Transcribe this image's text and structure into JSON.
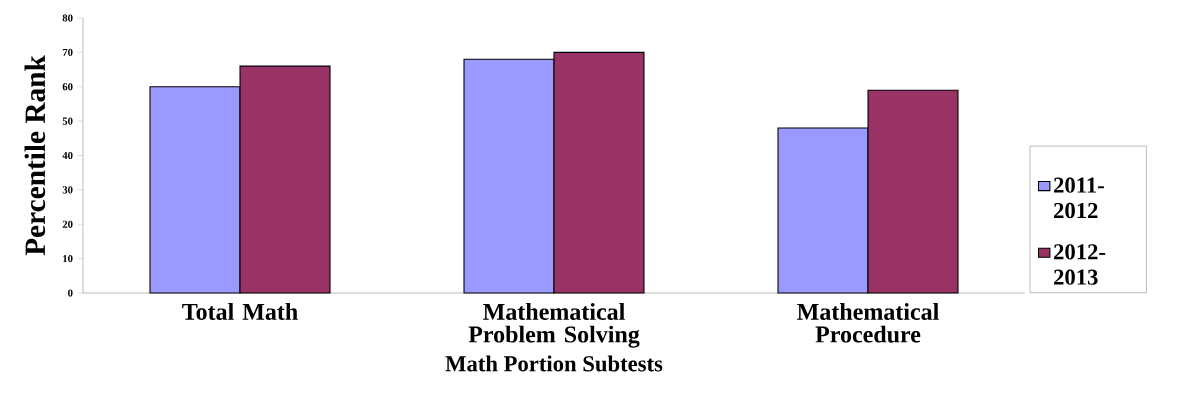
{
  "chart_data": {
    "type": "bar",
    "xlabel": "Math Portion Subtests",
    "ylabel": "Percentile Rank",
    "categories": [
      "Total Math",
      "Mathematical Problem Solving",
      "Mathematical Procedure"
    ],
    "series": [
      {
        "name": "2011-2012",
        "color": "#9999ff",
        "values": [
          60,
          68,
          48
        ]
      },
      {
        "name": "2012-2013",
        "color": "#993366",
        "values": [
          66,
          70,
          59
        ]
      }
    ],
    "ylim": [
      0,
      80
    ],
    "yticks": [
      0,
      10,
      20,
      30,
      40,
      50,
      60,
      70,
      80
    ],
    "legend": "right"
  }
}
